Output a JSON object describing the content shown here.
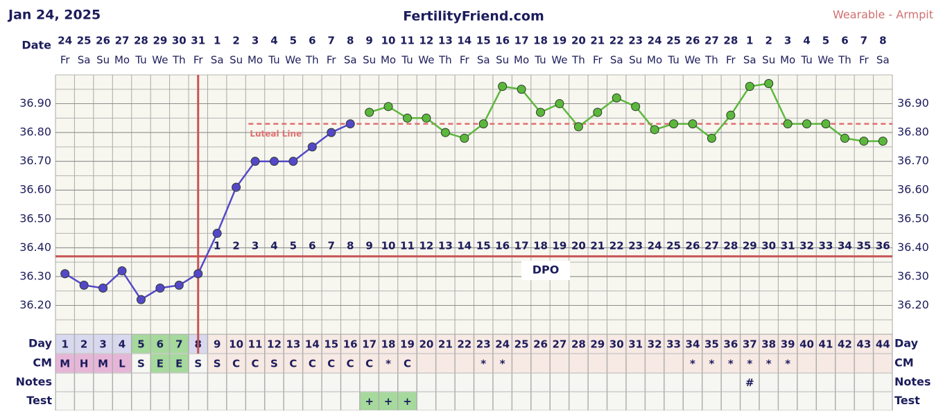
{
  "header": {
    "date": "Jan 24, 2025",
    "site": "FertilityFriend.com",
    "method": "Wearable - Armpit"
  },
  "chart_data": {
    "type": "line",
    "x_label": "Date",
    "categories": [
      "24",
      "25",
      "26",
      "27",
      "28",
      "29",
      "30",
      "31",
      "1",
      "2",
      "3",
      "4",
      "5",
      "6",
      "7",
      "8",
      "9",
      "10",
      "11",
      "12",
      "13",
      "14",
      "15",
      "16",
      "17",
      "18",
      "19",
      "20",
      "21",
      "22",
      "23",
      "24",
      "25",
      "26",
      "27",
      "28",
      "1",
      "2",
      "3",
      "4",
      "5",
      "6",
      "7",
      "8"
    ],
    "weekdays": [
      "Fr",
      "Sa",
      "Su",
      "Mo",
      "Tu",
      "We",
      "Th",
      "Fr",
      "Sa",
      "Su",
      "Mo",
      "Tu",
      "We",
      "Th",
      "Fr",
      "Sa",
      "Su",
      "Mo",
      "Tu",
      "We",
      "Th",
      "Fr",
      "Sa",
      "Su",
      "Mo",
      "Tu",
      "We",
      "Th",
      "Fr",
      "Sa",
      "Su",
      "Mo",
      "Tu",
      "We",
      "Th",
      "Fr",
      "Sa",
      "Su",
      "Mo",
      "Tu",
      "We",
      "Th",
      "Fr",
      "Sa"
    ],
    "ylim": [
      36.1,
      37.0
    ],
    "yticks": [
      {
        "value": 36.2,
        "label": "36.20"
      },
      {
        "value": 36.3,
        "label": "36.30"
      },
      {
        "value": 36.4,
        "label": "36.40"
      },
      {
        "value": 36.5,
        "label": "36.50"
      },
      {
        "value": 36.6,
        "label": "36.60"
      },
      {
        "value": 36.7,
        "label": "36.70"
      },
      {
        "value": 36.8,
        "label": "36.80"
      },
      {
        "value": 36.9,
        "label": "36.90"
      }
    ],
    "series": [
      {
        "color": "#5548c8",
        "values": [
          36.31,
          36.27,
          36.26,
          36.32,
          36.22,
          36.26,
          36.27,
          36.31,
          36.45,
          36.61,
          36.7,
          36.7,
          36.7,
          36.75,
          36.8,
          36.83,
          null,
          null,
          null,
          null,
          null,
          null,
          null,
          null,
          null,
          null,
          null,
          null,
          null,
          null,
          null,
          null,
          null,
          null,
          null,
          null,
          null,
          null,
          null,
          null,
          null,
          null,
          null,
          null
        ]
      },
      {
        "color": "#5cb83c",
        "values": [
          null,
          null,
          null,
          null,
          null,
          null,
          null,
          null,
          null,
          null,
          null,
          null,
          null,
          null,
          null,
          null,
          36.87,
          36.89,
          36.85,
          36.85,
          36.8,
          36.78,
          36.83,
          36.96,
          36.95,
          36.87,
          36.9,
          36.82,
          36.87,
          36.92,
          36.89,
          36.81,
          36.83,
          36.83,
          36.78,
          36.86,
          36.96,
          36.97,
          36.83,
          36.83,
          36.83,
          36.78,
          36.77,
          36.77
        ]
      }
    ],
    "coverline": 36.37,
    "ovulation_day": 8,
    "luteal_line": {
      "label": "Luteal Line",
      "value": 36.83
    },
    "dpo_label": "DPO",
    "dpo": [
      null,
      null,
      null,
      null,
      null,
      null,
      null,
      null,
      1,
      2,
      3,
      4,
      5,
      6,
      7,
      8,
      9,
      10,
      11,
      12,
      13,
      14,
      15,
      16,
      17,
      18,
      19,
      20,
      21,
      22,
      23,
      24,
      25,
      26,
      27,
      28,
      29,
      30,
      31,
      32,
      33,
      34,
      35,
      36
    ],
    "rows": [
      {
        "label": "Day",
        "values": [
          1,
          2,
          3,
          4,
          5,
          6,
          7,
          8,
          9,
          10,
          11,
          12,
          13,
          14,
          15,
          16,
          17,
          18,
          19,
          20,
          21,
          22,
          23,
          24,
          25,
          26,
          27,
          28,
          29,
          30,
          31,
          32,
          33,
          34,
          35,
          36,
          37,
          38,
          39,
          40,
          41,
          42,
          43,
          44
        ],
        "colors": [
          "#d8d8ee",
          "#d8d8ee",
          "#d8d8ee",
          "#d8d8ee",
          "#a6d99c",
          "#a6d99c",
          "#a6d99c",
          "#d8d8ee",
          null,
          null,
          null,
          null,
          null,
          null,
          null,
          null,
          null,
          null,
          null,
          null,
          null,
          null,
          null,
          null,
          null,
          null,
          null,
          null,
          null,
          null,
          null,
          null,
          null,
          null,
          null,
          null,
          null,
          null,
          null,
          null,
          null,
          null,
          null,
          null
        ]
      },
      {
        "label": "CM",
        "values": [
          "M",
          "H",
          "M",
          "L",
          "S",
          "E",
          "E",
          "S",
          "S",
          "C",
          "C",
          "S",
          "C",
          "C",
          "C",
          "C",
          "C",
          "*",
          "C",
          null,
          null,
          null,
          "*",
          "*",
          null,
          null,
          null,
          null,
          null,
          null,
          null,
          null,
          null,
          "*",
          "*",
          "*",
          "*",
          "*",
          "*",
          null,
          null,
          null,
          null,
          null
        ],
        "colors": [
          "#e6b6d8",
          "#e6b6d8",
          "#e6b6d8",
          "#e6b6d8",
          null,
          "#a6d99c",
          "#a6d99c",
          null,
          null,
          null,
          null,
          null,
          null,
          null,
          null,
          null,
          null,
          null,
          null,
          null,
          null,
          null,
          null,
          null,
          null,
          null,
          null,
          null,
          null,
          null,
          null,
          null,
          null,
          null,
          null,
          null,
          null,
          null,
          null,
          null,
          null,
          null,
          null,
          null
        ]
      },
      {
        "label": "Notes",
        "values": [
          null,
          null,
          null,
          null,
          null,
          null,
          null,
          null,
          null,
          null,
          null,
          null,
          null,
          null,
          null,
          null,
          null,
          null,
          null,
          null,
          null,
          null,
          null,
          null,
          null,
          null,
          null,
          null,
          null,
          null,
          null,
          null,
          null,
          null,
          null,
          null,
          "#",
          null,
          null,
          null,
          null,
          null,
          null,
          null
        ]
      },
      {
        "label": "Test",
        "values": [
          null,
          null,
          null,
          null,
          null,
          null,
          null,
          null,
          null,
          null,
          null,
          null,
          null,
          null,
          null,
          null,
          "+",
          "+",
          "+",
          null,
          null,
          null,
          null,
          null,
          null,
          null,
          null,
          null,
          null,
          null,
          null,
          null,
          null,
          null,
          null,
          null,
          null,
          null,
          null,
          null,
          null,
          null,
          null,
          null
        ],
        "colors": [
          null,
          null,
          null,
          null,
          null,
          null,
          null,
          null,
          null,
          null,
          null,
          null,
          null,
          null,
          null,
          null,
          "#a6d99c",
          "#a6d99c",
          "#a6d99c",
          null,
          null,
          null,
          null,
          null,
          null,
          null,
          null,
          null,
          null,
          null,
          null,
          null,
          null,
          null,
          null,
          null,
          null,
          null,
          null,
          null,
          null,
          null,
          null,
          null
        ]
      }
    ]
  }
}
